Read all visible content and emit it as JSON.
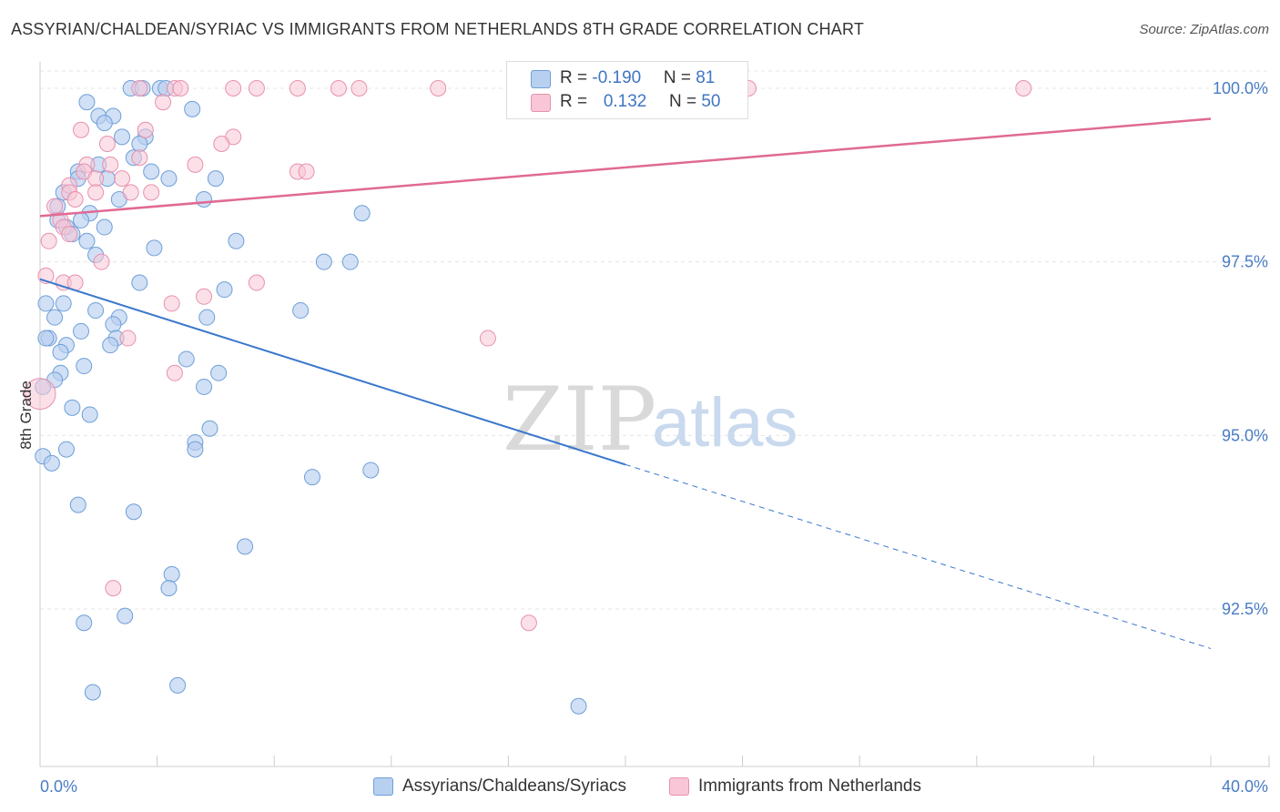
{
  "title": "ASSYRIAN/CHALDEAN/SYRIAC VS IMMIGRANTS FROM NETHERLANDS 8TH GRADE CORRELATION CHART",
  "source": "Source: ZipAtlas.com",
  "watermark": {
    "zip": "ZIP",
    "atlas": "atlas"
  },
  "legend": {
    "row1": {
      "r_label": "R = ",
      "r_value": "-0.190",
      "n_label": "N = ",
      "n_value": "81"
    },
    "row2": {
      "r_label": "R = ",
      "r_value": "0.132",
      "n_label": "N = ",
      "n_value": "50"
    }
  },
  "bottom_legend": {
    "series1": "Assyrians/Chaldeans/Syriacs",
    "series2": "Immigrants from Netherlands"
  },
  "colors": {
    "blue_fill": "#b8d0f0",
    "blue_stroke": "#6e9fd8",
    "blue_line": "#3a78cc",
    "pink_fill": "#f8c6d6",
    "pink_stroke": "#e890ae",
    "pink_line": "#e06a94",
    "tick_text": "#4a7cc4",
    "grid": "#e4e4e4"
  },
  "chart_data": {
    "type": "scatter",
    "title": "ASSYRIAN/CHALDEAN/SYRIAC VS IMMIGRANTS FROM NETHERLANDS 8TH GRADE CORRELATION CHART",
    "xlabel": "",
    "ylabel": "8th Grade",
    "xlim": [
      0,
      40
    ],
    "ylim": [
      90.2,
      100.5
    ],
    "x_tick_labels": [
      "0.0%",
      "40.0%"
    ],
    "y_ticks": [
      100.0,
      97.5,
      95.0,
      92.5
    ],
    "y_tick_labels": [
      "100.0%",
      "97.5%",
      "95.0%",
      "92.5%"
    ],
    "grid": true,
    "legend_position": "top-center",
    "series": [
      {
        "name": "Assyrians/Chaldeans/Syriacs",
        "color": "#6e9fd8",
        "R": -0.19,
        "N": 81,
        "trend": {
          "x": [
            0,
            20
          ],
          "y": [
            97.25,
            94.58
          ],
          "dashed_to": [
            40,
            91.93
          ]
        },
        "points": [
          [
            3.1,
            100.0
          ],
          [
            4.1,
            100.0
          ],
          [
            4.3,
            100.0
          ],
          [
            3.5,
            100.0
          ],
          [
            1.6,
            99.8
          ],
          [
            5.2,
            99.7
          ],
          [
            2.0,
            99.6
          ],
          [
            2.5,
            99.6
          ],
          [
            2.2,
            99.5
          ],
          [
            2.8,
            99.3
          ],
          [
            3.6,
            99.3
          ],
          [
            3.4,
            99.2
          ],
          [
            3.2,
            99.0
          ],
          [
            1.3,
            98.8
          ],
          [
            2.0,
            98.9
          ],
          [
            3.8,
            98.8
          ],
          [
            1.3,
            98.7
          ],
          [
            2.3,
            98.7
          ],
          [
            4.4,
            98.7
          ],
          [
            6.0,
            98.7
          ],
          [
            0.8,
            98.5
          ],
          [
            2.7,
            98.4
          ],
          [
            5.6,
            98.4
          ],
          [
            0.6,
            98.3
          ],
          [
            1.7,
            98.2
          ],
          [
            11.0,
            98.2
          ],
          [
            0.6,
            98.1
          ],
          [
            1.4,
            98.1
          ],
          [
            2.2,
            98.0
          ],
          [
            0.9,
            98.0
          ],
          [
            1.1,
            97.9
          ],
          [
            1.6,
            97.8
          ],
          [
            6.7,
            97.8
          ],
          [
            3.9,
            97.7
          ],
          [
            1.9,
            97.6
          ],
          [
            9.7,
            97.5
          ],
          [
            10.6,
            97.5
          ],
          [
            3.4,
            97.2
          ],
          [
            6.3,
            97.1
          ],
          [
            0.2,
            96.9
          ],
          [
            0.8,
            96.9
          ],
          [
            8.9,
            96.8
          ],
          [
            1.9,
            96.8
          ],
          [
            0.5,
            96.7
          ],
          [
            2.7,
            96.7
          ],
          [
            5.7,
            96.7
          ],
          [
            2.5,
            96.6
          ],
          [
            0.3,
            96.4
          ],
          [
            1.4,
            96.5
          ],
          [
            0.2,
            96.4
          ],
          [
            2.6,
            96.4
          ],
          [
            0.9,
            96.3
          ],
          [
            2.4,
            96.3
          ],
          [
            0.7,
            96.2
          ],
          [
            5.0,
            96.1
          ],
          [
            1.5,
            96.0
          ],
          [
            0.7,
            95.9
          ],
          [
            6.1,
            95.9
          ],
          [
            0.5,
            95.8
          ],
          [
            0.1,
            95.7
          ],
          [
            5.6,
            95.7
          ],
          [
            1.1,
            95.4
          ],
          [
            1.7,
            95.3
          ],
          [
            5.8,
            95.1
          ],
          [
            5.3,
            94.9
          ],
          [
            5.3,
            94.8
          ],
          [
            0.9,
            94.8
          ],
          [
            0.1,
            94.7
          ],
          [
            0.4,
            94.6
          ],
          [
            11.3,
            94.5
          ],
          [
            9.3,
            94.4
          ],
          [
            1.3,
            94.0
          ],
          [
            3.2,
            93.9
          ],
          [
            7.0,
            93.4
          ],
          [
            4.5,
            93.0
          ],
          [
            4.4,
            92.8
          ],
          [
            2.9,
            92.4
          ],
          [
            1.5,
            92.3
          ],
          [
            1.8,
            91.3
          ],
          [
            4.7,
            91.4
          ],
          [
            18.4,
            91.1
          ]
        ]
      },
      {
        "name": "Immigrants from Netherlands",
        "color": "#e890ae",
        "R": 0.132,
        "N": 50,
        "trend": {
          "x": [
            0,
            40
          ],
          "y": [
            98.16,
            99.56
          ]
        },
        "points": [
          [
            3.4,
            100.0
          ],
          [
            4.6,
            100.0
          ],
          [
            4.8,
            100.0
          ],
          [
            6.6,
            100.0
          ],
          [
            7.4,
            100.0
          ],
          [
            8.8,
            100.0
          ],
          [
            10.2,
            100.0
          ],
          [
            10.9,
            100.0
          ],
          [
            13.6,
            100.0
          ],
          [
            24.2,
            100.0
          ],
          [
            33.6,
            100.0
          ],
          [
            4.2,
            99.8
          ],
          [
            1.4,
            99.4
          ],
          [
            3.6,
            99.4
          ],
          [
            6.6,
            99.3
          ],
          [
            2.3,
            99.2
          ],
          [
            6.2,
            99.2
          ],
          [
            3.4,
            99.0
          ],
          [
            1.6,
            98.9
          ],
          [
            2.4,
            98.9
          ],
          [
            5.3,
            98.9
          ],
          [
            8.8,
            98.8
          ],
          [
            9.1,
            98.8
          ],
          [
            1.5,
            98.8
          ],
          [
            1.9,
            98.7
          ],
          [
            2.8,
            98.7
          ],
          [
            1.0,
            98.6
          ],
          [
            1.0,
            98.5
          ],
          [
            1.9,
            98.5
          ],
          [
            3.1,
            98.5
          ],
          [
            3.8,
            98.5
          ],
          [
            1.2,
            98.4
          ],
          [
            0.5,
            98.3
          ],
          [
            0.7,
            98.1
          ],
          [
            0.8,
            98.0
          ],
          [
            1.0,
            97.9
          ],
          [
            0.3,
            97.8
          ],
          [
            2.1,
            97.5
          ],
          [
            0.2,
            97.3
          ],
          [
            0.8,
            97.2
          ],
          [
            1.2,
            97.2
          ],
          [
            7.4,
            97.2
          ],
          [
            5.6,
            97.0
          ],
          [
            4.5,
            96.9
          ],
          [
            3.0,
            96.4
          ],
          [
            15.3,
            96.4
          ],
          [
            4.6,
            95.9
          ],
          [
            0.0,
            95.6
          ],
          [
            2.5,
            92.8
          ],
          [
            16.7,
            92.3
          ]
        ]
      }
    ]
  }
}
